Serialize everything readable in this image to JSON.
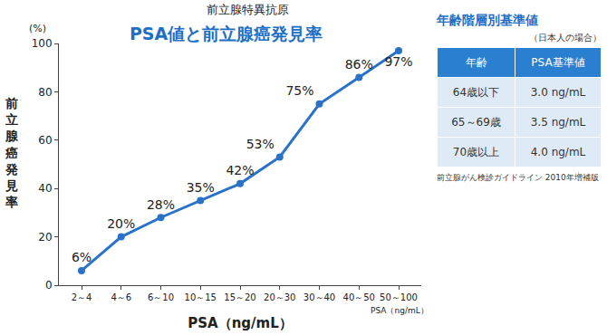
{
  "chart_data": {
    "type": "line",
    "supertitle": "前立腺特異抗原",
    "title": "PSA値と前立腺癌発見率",
    "x_label": "PSA（ng/mL）",
    "x_unit_note": "PSA（ng/mL）",
    "y_label": "前立腺癌発見率",
    "y_unit": "(%)",
    "categories": [
      "2～4",
      "4～6",
      "6～10",
      "10～15",
      "15～20",
      "20～30",
      "30～40",
      "40～50",
      "50～100"
    ],
    "values": [
      6,
      20,
      28,
      35,
      42,
      53,
      75,
      86,
      97
    ],
    "value_labels": [
      "6%",
      "20%",
      "28%",
      "35%",
      "42%",
      "53%",
      "75%",
      "86%",
      "97%"
    ],
    "color": "#2a72c8",
    "marker": "circle",
    "data_labels": true,
    "ylim": [
      0,
      100
    ],
    "yticks": [
      0,
      20,
      40,
      60,
      80,
      100
    ],
    "grid": false
  },
  "table": {
    "title": "年齢階層別基準値",
    "note": "（日本人の場合）",
    "header": [
      "年齢",
      "PSA基準値"
    ],
    "rows": [
      [
        "64歳以下",
        "3.0 ng/mL"
      ],
      [
        "65～69歳",
        "3.5 ng/mL"
      ],
      [
        "70歳以上",
        "4.0 ng/mL"
      ]
    ],
    "source": "前立腺がん検診ガイドライン 2010年増補版"
  }
}
